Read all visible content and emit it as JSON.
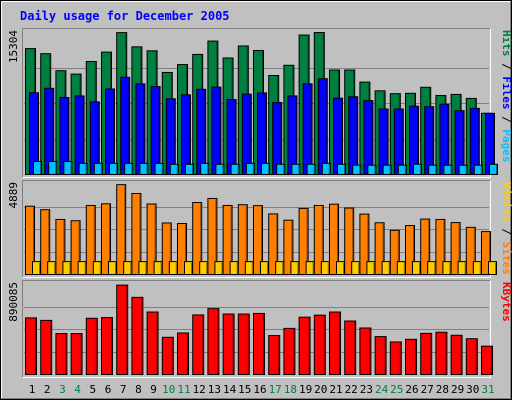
{
  "chart_data": {
    "type": "bar",
    "title": "Daily usage for December 2005",
    "categories": [
      "1",
      "2",
      "3",
      "4",
      "5",
      "6",
      "7",
      "8",
      "9",
      "10",
      "11",
      "12",
      "13",
      "14",
      "15",
      "16",
      "17",
      "18",
      "19",
      "20",
      "21",
      "22",
      "23",
      "24",
      "25",
      "26",
      "27",
      "28",
      "29",
      "30",
      "31"
    ],
    "weekend_days": [
      "3",
      "4",
      "10",
      "11",
      "17",
      "18",
      "24",
      "25",
      "31"
    ],
    "panels": [
      {
        "id": "hits",
        "max_label": "15304",
        "max": 15304,
        "side_labels": [
          {
            "text": "Hits",
            "color": "#008040"
          },
          {
            "text": "Files",
            "color": "#0000ff"
          },
          {
            "text": "Pages",
            "color": "#00c0ff"
          }
        ],
        "series": [
          {
            "name": "Hits",
            "color": "#008040",
            "values": [
              13570,
              13020,
              11190,
              10820,
              12180,
              13190,
              15290,
              13760,
              13330,
              11000,
              11850,
              12940,
              14380,
              12560,
              13850,
              13360,
              10670,
              11770,
              15030,
              15300,
              11260,
              11260,
              9960,
              9020,
              8710,
              8750,
              9400,
              8510,
              8630,
              8200,
              6600
            ]
          },
          {
            "name": "Files",
            "color": "#0000ff",
            "values": [
              8810,
              9290,
              8300,
              8470,
              7830,
              9220,
              10480,
              9770,
              9480,
              8160,
              8590,
              9180,
              9420,
              8080,
              8660,
              8790,
              7760,
              8470,
              9770,
              10330,
              8230,
              8380,
              7960,
              7060,
              7060,
              7360,
              7310,
              7570,
              6880,
              7130,
              6590
            ]
          },
          {
            "name": "Pages",
            "color": "#00c0ff",
            "values": [
              1400,
              1400,
              1400,
              1200,
              1200,
              1200,
              1200,
              1200,
              1200,
              1100,
              1100,
              1200,
              1100,
              1100,
              1200,
              1200,
              1100,
              1100,
              1100,
              1200,
              1100,
              1000,
              1000,
              1000,
              1000,
              1100,
              1000,
              1000,
              1000,
              1000,
              1100
            ]
          }
        ]
      },
      {
        "id": "visits",
        "max_label": "4889",
        "max": 4889,
        "side_labels": [
          {
            "text": "Visits",
            "color": "#ffcc00"
          },
          {
            "text": "Sites",
            "color": "#ff8000"
          }
        ],
        "series": [
          {
            "name": "Visits",
            "color": "#ff8000",
            "values": [
              3710,
              3520,
              2990,
              2920,
              3750,
              3840,
              4880,
              4400,
              3830,
              2800,
              2770,
              3910,
              4130,
              3750,
              3790,
              3740,
              3290,
              2950,
              3590,
              3750,
              3820,
              3610,
              3280,
              2810,
              2400,
              2660,
              3010,
              2990,
              2820,
              2560,
              2330
            ]
          },
          {
            "name": "Sites",
            "color": "#ffcc00",
            "values": [
              700,
              700,
              700,
              700,
              700,
              700,
              700,
              700,
              700,
              700,
              700,
              700,
              700,
              700,
              700,
              700,
              700,
              700,
              700,
              700,
              700,
              700,
              700,
              700,
              700,
              700,
              700,
              700,
              700,
              700,
              700
            ]
          }
        ]
      },
      {
        "id": "kbytes",
        "max_label": "890085",
        "max": 890085,
        "side_labels": [
          {
            "text": "KBytes",
            "color": "#ff0000"
          }
        ],
        "series": [
          {
            "name": "KBytes",
            "color": "#ff0000",
            "values": [
              560000,
              535000,
              405000,
              405000,
              556000,
              563000,
              884000,
              763000,
              618000,
              368000,
              411000,
              589000,
              651000,
              598000,
              598000,
              604000,
              385000,
              456000,
              567000,
              587000,
              618000,
              529000,
              460000,
              375000,
              322000,
              348000,
              407000,
              418000,
              388000,
              354000,
              280000
            ]
          }
        ]
      }
    ],
    "colors": {
      "background": "#c0c0c0",
      "panel": "#c0c0c0",
      "title": "#0000ff",
      "day_label": "#000000",
      "weekend_label": "#008040"
    }
  }
}
